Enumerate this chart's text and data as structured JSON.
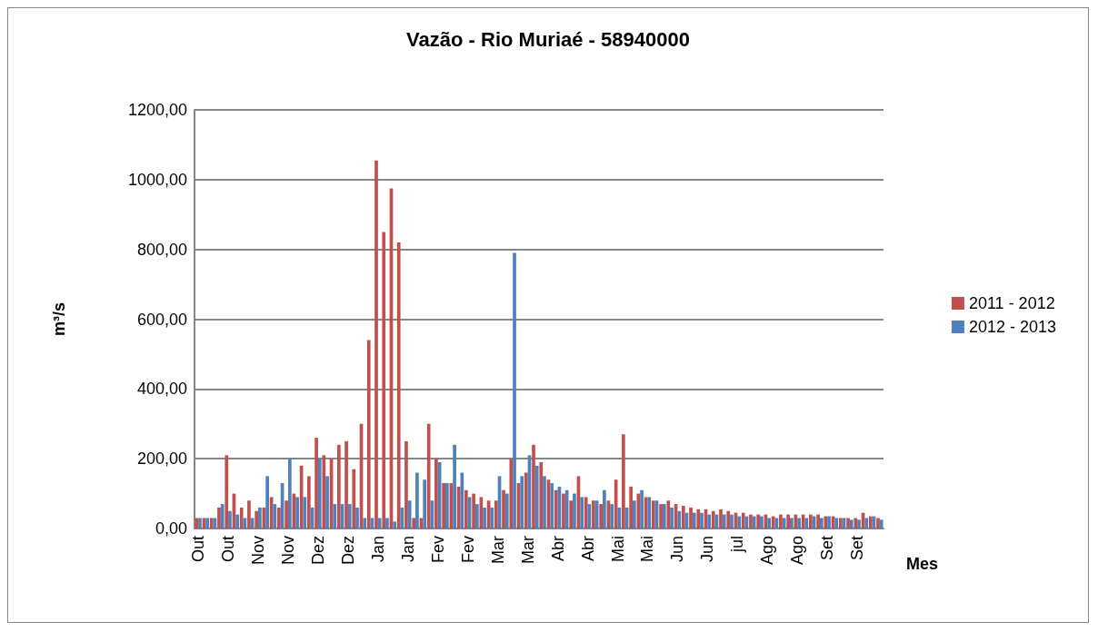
{
  "chart_data": {
    "type": "bar",
    "title": "Vazão - Rio Muriaé - 58940000",
    "xlabel": "Mes",
    "ylabel": "m³/s",
    "categories": [
      "Out",
      null,
      null,
      null,
      "Out",
      null,
      null,
      null,
      "Nov",
      null,
      null,
      null,
      "Nov",
      null,
      null,
      null,
      "Dez",
      null,
      null,
      null,
      "Dez",
      null,
      null,
      null,
      "Jan",
      null,
      null,
      null,
      "Jan",
      null,
      null,
      null,
      "Fev",
      null,
      null,
      null,
      "Fev",
      null,
      null,
      null,
      "Mar",
      null,
      null,
      null,
      "Mar",
      null,
      null,
      null,
      "Abr",
      null,
      null,
      null,
      "Abr",
      null,
      null,
      null,
      "Mai",
      null,
      null,
      null,
      "Mai",
      null,
      null,
      null,
      "Jun",
      null,
      null,
      null,
      "Jun",
      null,
      null,
      null,
      "jul",
      null,
      null,
      null,
      "Ago",
      null,
      null,
      null,
      "Ago",
      null,
      null,
      null,
      "Set",
      null,
      null,
      null,
      "Set",
      null,
      null,
      null
    ],
    "series": [
      {
        "name": "2011 - 2012",
        "color": "#c0504d",
        "values": [
          30,
          30,
          30,
          60,
          210,
          100,
          60,
          80,
          50,
          60,
          90,
          60,
          80,
          100,
          180,
          150,
          260,
          210,
          200,
          240,
          250,
          170,
          300,
          540,
          1055,
          850,
          975,
          820,
          250,
          30,
          30,
          300,
          200,
          130,
          130,
          120,
          110,
          100,
          90,
          80,
          80,
          110,
          200,
          130,
          160,
          240,
          190,
          140,
          110,
          100,
          80,
          150,
          90,
          80,
          70,
          80,
          140,
          270,
          120,
          100,
          90,
          80,
          70,
          80,
          70,
          65,
          60,
          55,
          55,
          50,
          55,
          50,
          45,
          45,
          40,
          40,
          40,
          35,
          40,
          40,
          40,
          40,
          40,
          40,
          35,
          35,
          30,
          30,
          30,
          45,
          35,
          30
        ]
      },
      {
        "name": "2012 - 2013",
        "color": "#4f81bd",
        "values": [
          30,
          30,
          30,
          70,
          50,
          40,
          30,
          30,
          60,
          150,
          70,
          130,
          200,
          90,
          90,
          60,
          200,
          150,
          70,
          70,
          70,
          60,
          30,
          30,
          30,
          30,
          20,
          60,
          80,
          160,
          140,
          80,
          190,
          130,
          240,
          160,
          90,
          70,
          60,
          60,
          150,
          100,
          790,
          150,
          210,
          180,
          150,
          130,
          120,
          110,
          100,
          90,
          70,
          80,
          110,
          70,
          60,
          60,
          80,
          110,
          90,
          80,
          70,
          60,
          50,
          45,
          45,
          45,
          40,
          40,
          40,
          40,
          35,
          35,
          35,
          35,
          30,
          30,
          30,
          30,
          30,
          30,
          35,
          30,
          35,
          30,
          30,
          25,
          25,
          30,
          35,
          25
        ]
      }
    ],
    "ylim": [
      0,
      1200
    ],
    "yticks": [
      {
        "value": 0,
        "label": "0,00"
      },
      {
        "value": 200,
        "label": "200,00"
      },
      {
        "value": 400,
        "label": "400,00"
      },
      {
        "value": 600,
        "label": "600,00"
      },
      {
        "value": 800,
        "label": "800,00"
      },
      {
        "value": 1000,
        "label": "1000,00"
      },
      {
        "value": 1200,
        "label": "1200,00"
      }
    ],
    "grid": "y",
    "legend": "right"
  }
}
